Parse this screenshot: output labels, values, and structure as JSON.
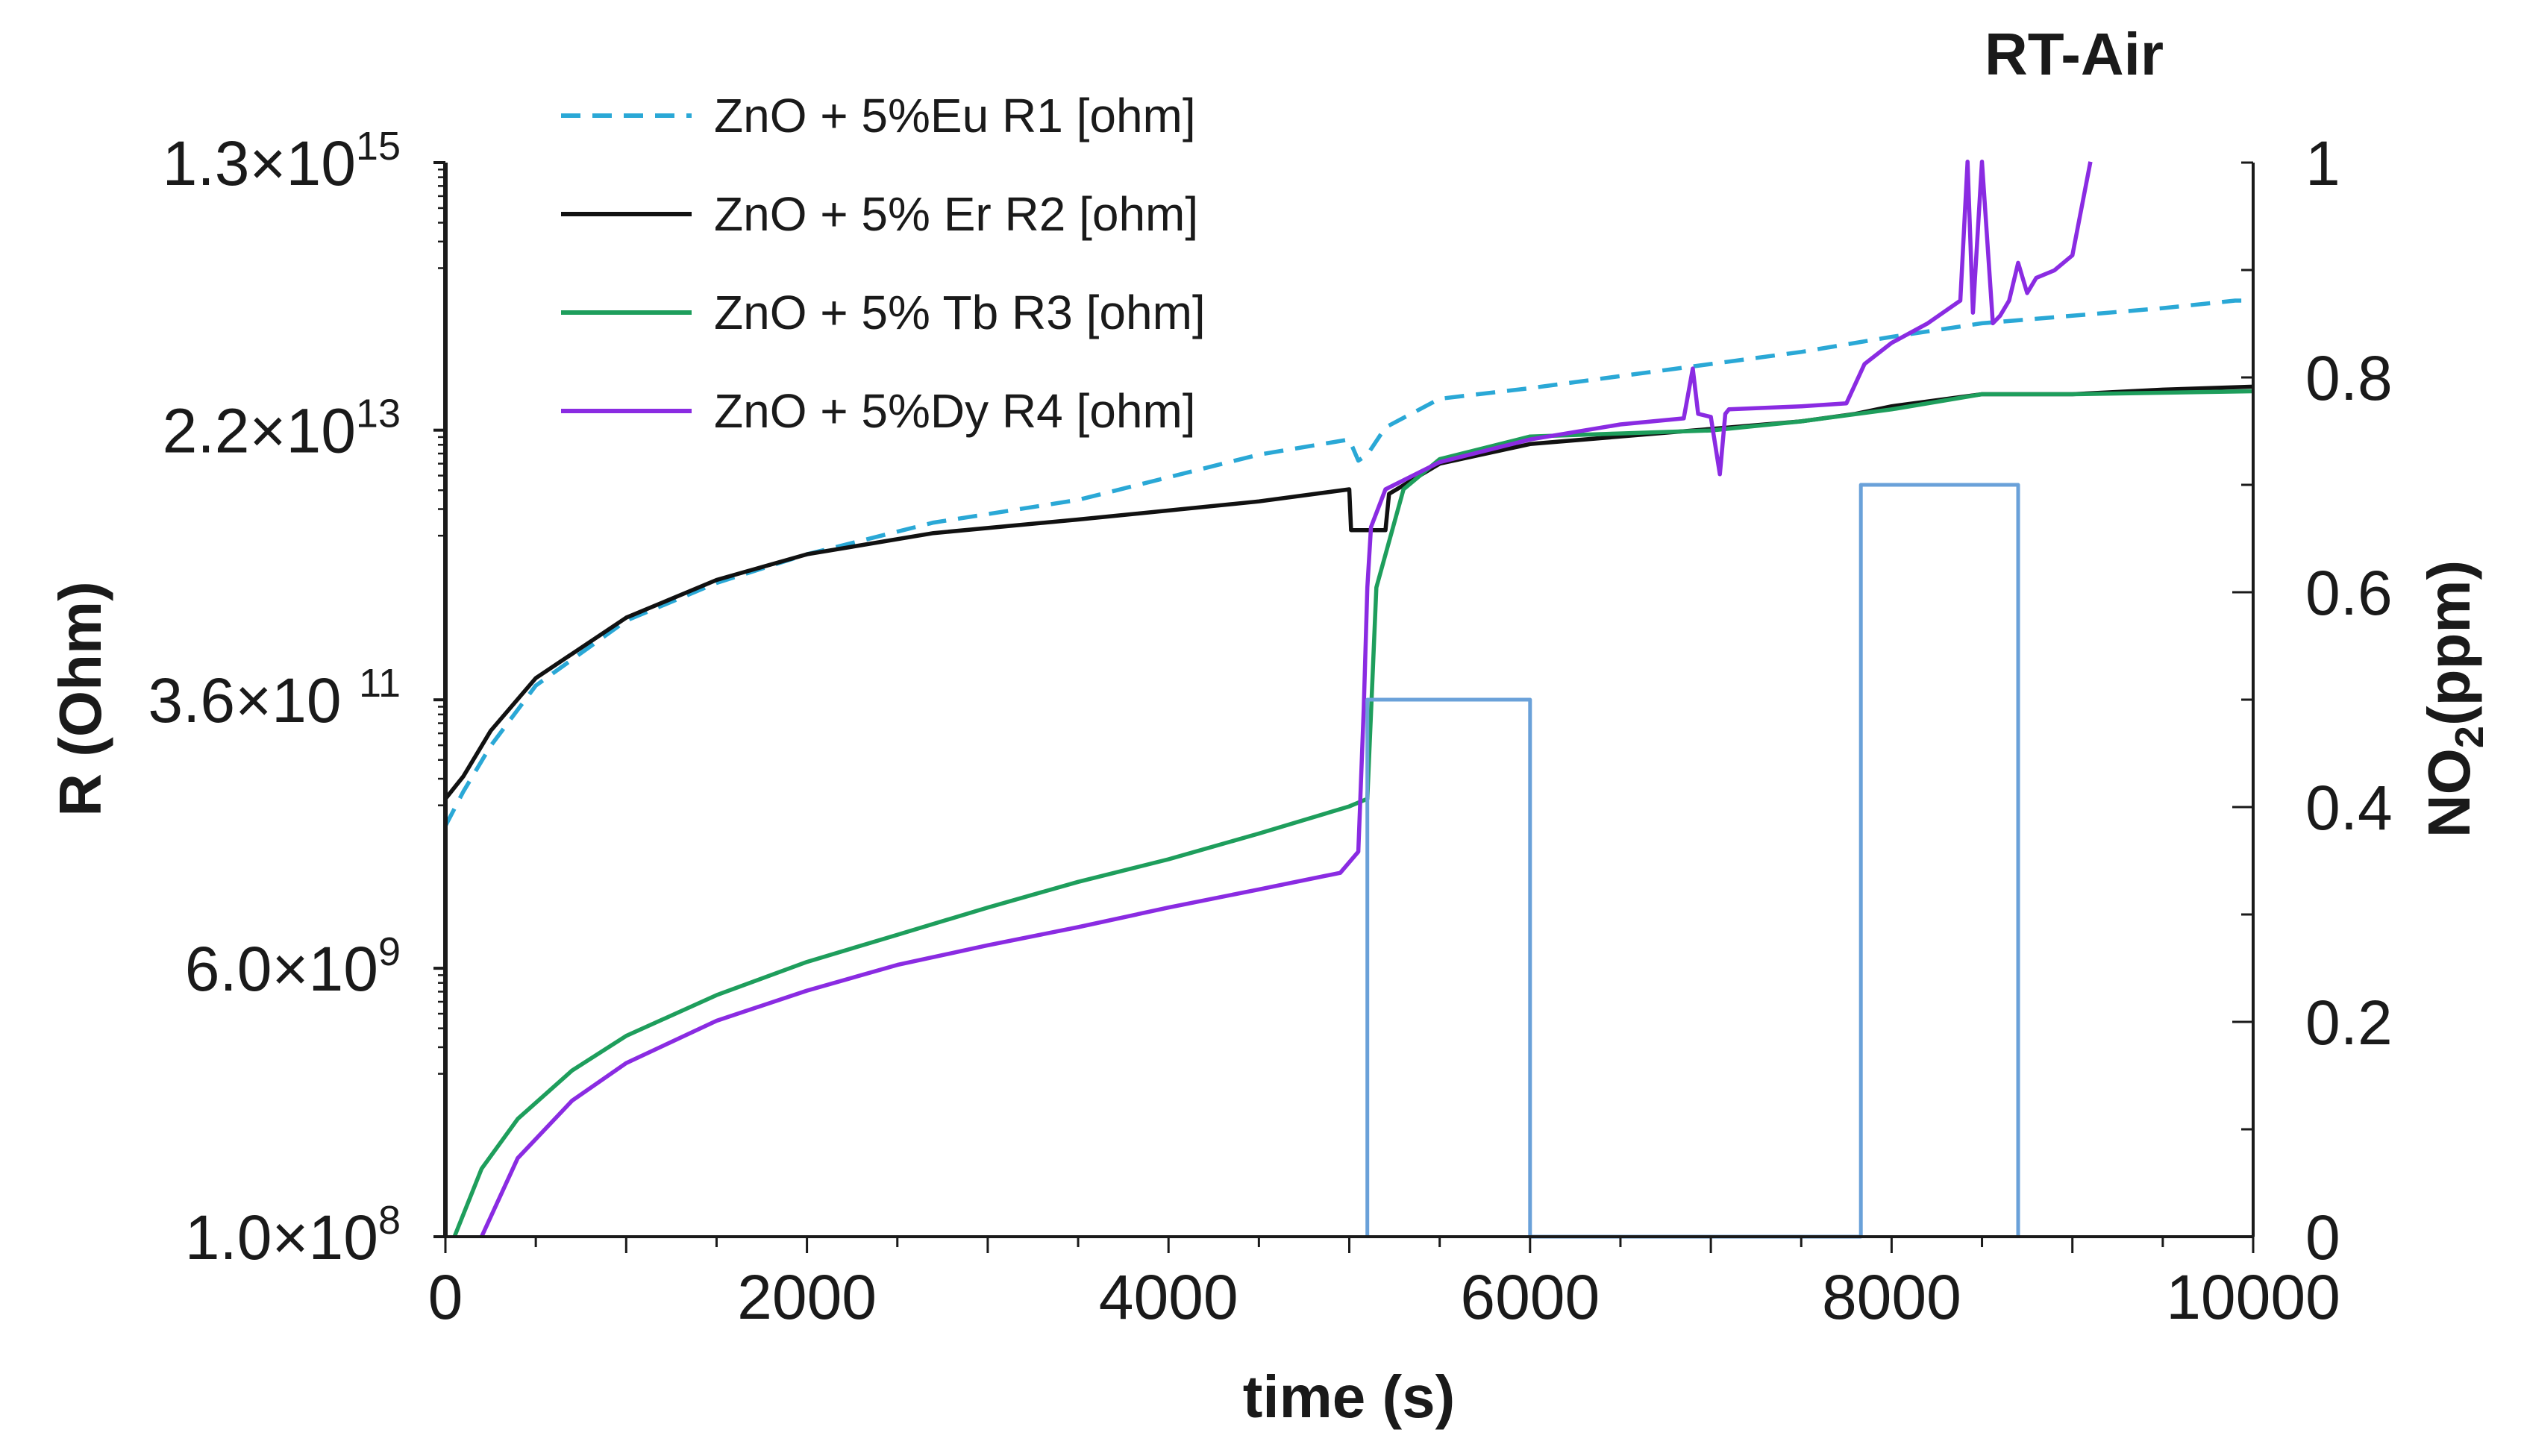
{
  "chart_data": {
    "type": "line",
    "title": "RT-Air",
    "xlabel": "time  (s)",
    "ylabel_left": "R (Ohm)",
    "ylabel_right": {
      "main": "NO",
      "sub": "2",
      "rest": "(ppm)"
    },
    "xlim": [
      0,
      10000
    ],
    "ylim_left_log10": [
      8,
      15.114
    ],
    "ylim_right": [
      0,
      1
    ],
    "x_ticks": [
      "0",
      "2000",
      "4000",
      "6000",
      "8000",
      "10000"
    ],
    "x_tick_values": [
      0,
      2000,
      4000,
      6000,
      8000,
      10000
    ],
    "left_ticks": [
      {
        "log10": 15.114,
        "mant": "1.3",
        "times": "×10",
        "exp": "15"
      },
      {
        "log10": 13.342,
        "mant": "2.2",
        "times": "×10",
        "exp": "13"
      },
      {
        "log10": 11.556,
        "mant": "3.6",
        "times": "×10 ",
        "exp": "11"
      },
      {
        "log10": 9.778,
        "mant": "6.0",
        "times": "×10",
        "exp": "9"
      },
      {
        "log10": 8.0,
        "mant": "1.0",
        "times": "×10",
        "exp": "8"
      }
    ],
    "right_ticks": [
      "0",
      "0.2",
      "0.4",
      "0.6",
      "0.8",
      "1"
    ],
    "right_tick_values": [
      0,
      0.2,
      0.4,
      0.6,
      0.8,
      1.0
    ],
    "grid": false,
    "legend_position": "top-left",
    "series": [
      {
        "name": "ZnO + 5%Eu  R1 [ohm]",
        "axis": "left",
        "color": "#2aa8d6",
        "dash": true,
        "x": [
          0,
          100,
          250,
          500,
          1000,
          1500,
          2000,
          2700,
          3500,
          4500,
          5000,
          5050,
          5100,
          5200,
          5500,
          6000,
          6500,
          7000,
          7500,
          8000,
          8500,
          9000,
          9500,
          9900,
          10000
        ],
        "log10": [
          10.72,
          10.95,
          11.25,
          11.65,
          12.08,
          12.33,
          12.52,
          12.73,
          12.88,
          13.18,
          13.28,
          13.14,
          13.18,
          13.36,
          13.55,
          13.62,
          13.7,
          13.78,
          13.86,
          13.96,
          14.05,
          14.1,
          14.15,
          14.2,
          14.2
        ]
      },
      {
        "name": "ZnO + 5% Er  R2 [ohm]",
        "axis": "left",
        "color": "#111111",
        "dash": false,
        "x": [
          0,
          100,
          250,
          500,
          1000,
          1500,
          2000,
          2700,
          3500,
          4500,
          5000,
          5010,
          5200,
          5220,
          5500,
          6000,
          7000,
          7500,
          7800,
          8000,
          8500,
          9000,
          9500,
          10000
        ],
        "log10": [
          10.9,
          11.05,
          11.35,
          11.7,
          12.1,
          12.35,
          12.52,
          12.66,
          12.75,
          12.87,
          12.95,
          12.68,
          12.68,
          12.92,
          13.12,
          13.25,
          13.35,
          13.4,
          13.45,
          13.5,
          13.58,
          13.58,
          13.61,
          13.63
        ]
      },
      {
        "name": "ZnO + 5% Tb  R3 [ohm]",
        "axis": "left",
        "color": "#1e9e5c",
        "dash": false,
        "x": [
          50,
          200,
          400,
          700,
          1000,
          1500,
          2000,
          2500,
          3000,
          3500,
          4000,
          4500,
          5000,
          5100,
          5150,
          5300,
          5500,
          6000,
          6500,
          7000,
          7500,
          8000,
          8500,
          9000,
          10000
        ],
        "log10": [
          8.0,
          8.45,
          8.78,
          9.1,
          9.33,
          9.6,
          9.82,
          10.0,
          10.18,
          10.35,
          10.5,
          10.67,
          10.85,
          10.9,
          12.3,
          12.95,
          13.15,
          13.3,
          13.32,
          13.34,
          13.4,
          13.48,
          13.58,
          13.58,
          13.6
        ]
      },
      {
        "name": "ZnO + 5%Dy  R4 [ohm]",
        "axis": "left",
        "color": "#8a2be2",
        "dash": false,
        "x": [
          200,
          400,
          700,
          1000,
          1500,
          2000,
          2500,
          3000,
          3500,
          4000,
          4500,
          4950,
          5050,
          5080,
          5100,
          5120,
          5200,
          5500,
          6000,
          6500,
          6850,
          6900,
          6930,
          7000,
          7050,
          7080,
          7100,
          7500,
          7750,
          7850,
          8000,
          8200,
          8380,
          8420,
          8450,
          8500,
          8560,
          8600,
          8650,
          8700,
          8750,
          8800,
          8900,
          9000,
          9100
        ],
        "log10": [
          8.0,
          8.52,
          8.9,
          9.15,
          9.43,
          9.63,
          9.8,
          9.93,
          10.05,
          10.18,
          10.3,
          10.41,
          10.55,
          11.5,
          12.3,
          12.7,
          12.95,
          13.13,
          13.28,
          13.38,
          13.42,
          13.75,
          13.45,
          13.43,
          13.05,
          13.45,
          13.48,
          13.5,
          13.52,
          13.78,
          13.92,
          14.05,
          14.2,
          15.12,
          14.12,
          15.12,
          14.05,
          14.1,
          14.2,
          14.45,
          14.25,
          14.35,
          14.4,
          14.5,
          15.12
        ]
      },
      {
        "name": "NO2",
        "axis": "right",
        "color": "#6aa1d9",
        "dash": false,
        "x": [
          5100,
          5100,
          6000,
          6000,
          7830,
          7830,
          8700,
          8700
        ],
        "ppm": [
          0,
          0.5,
          0.5,
          0,
          0,
          0.7,
          0.7,
          0
        ]
      }
    ],
    "legend_entries": [
      {
        "label": "ZnO + 5%Eu  R1 [ohm]",
        "series": 0
      },
      {
        "label": "ZnO + 5% Er  R2 [ohm]",
        "series": 1
      },
      {
        "label": "ZnO + 5% Tb  R3 [ohm]",
        "series": 2
      },
      {
        "label": "ZnO + 5%Dy  R4 [ohm]",
        "series": 3
      }
    ]
  }
}
